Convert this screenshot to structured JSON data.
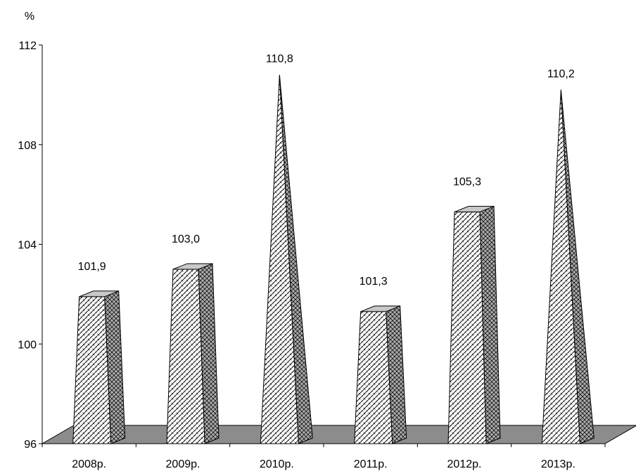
{
  "chart_data": {
    "type": "bar",
    "categories": [
      "2008р.",
      "2009р.",
      "2010р.",
      "2011р.",
      "2012р.",
      "2013р."
    ],
    "values": [
      101.9,
      103.0,
      110.8,
      101.3,
      105.3,
      110.2
    ],
    "data_labels": [
      "101,9",
      "103,0",
      "110,8",
      "101,3",
      "105,3",
      "110,2"
    ],
    "shapes": [
      "pyramid-frustum",
      "pyramid-frustum",
      "pyramid",
      "pyramid-frustum",
      "pyramid-frustum",
      "pyramid"
    ],
    "y_unit": "%",
    "ylim": [
      96,
      112
    ],
    "yticks": [
      96,
      100,
      104,
      108,
      112
    ],
    "grid": false,
    "style": "3d",
    "fill_pattern": "cross-hatch",
    "colors": {
      "front": "#ffffff",
      "side": "#a9a9a9",
      "floor": "#8c8c8c",
      "hatch": "#000000",
      "axis": "#000000"
    }
  }
}
